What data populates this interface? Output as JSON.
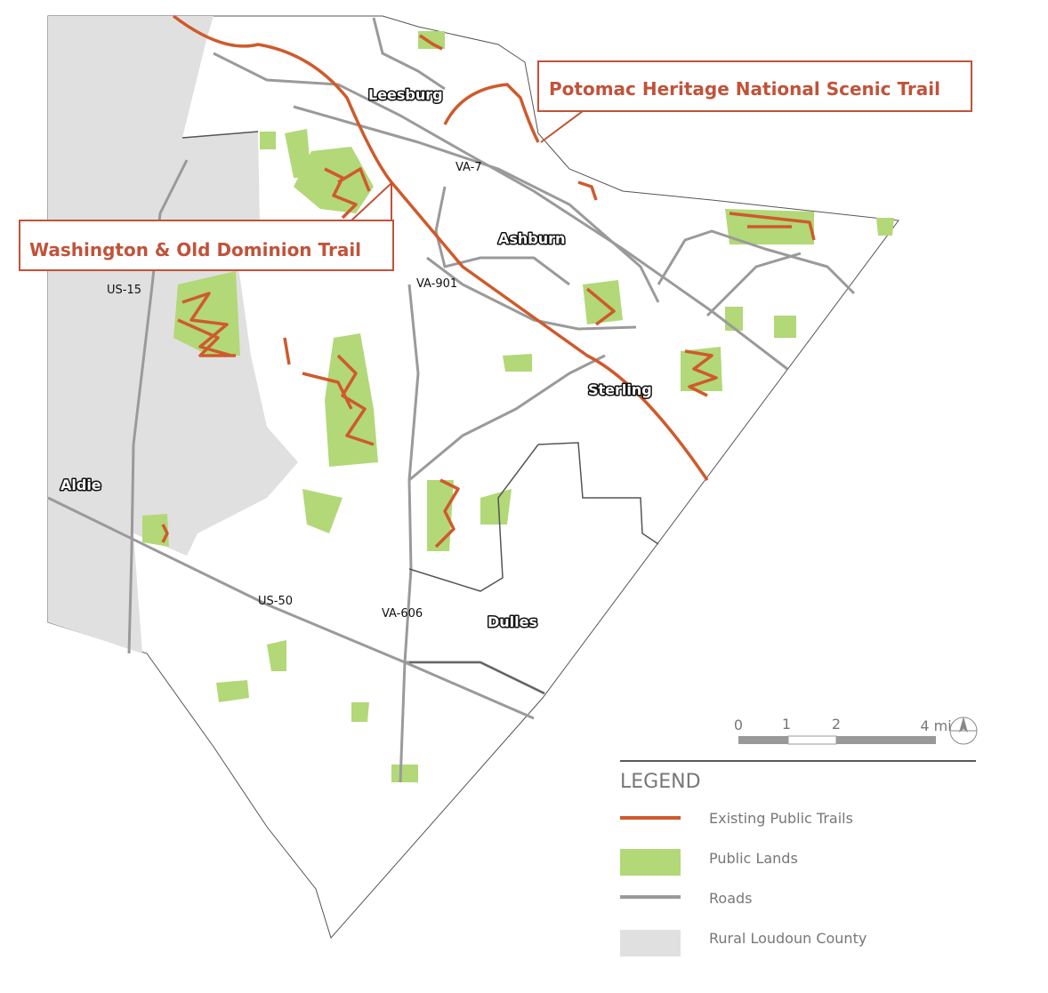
{
  "callouts": [
    "Potomac Heritage National Scenic Trail",
    "Washington & Old Dominion Trail"
  ],
  "places": [
    "Leesburg",
    "Ashburn",
    "Sterling",
    "Aldie",
    "Dulles"
  ],
  "roads": [
    "VA-7",
    "VA-901",
    "US-15",
    "US-50",
    "VA-606"
  ],
  "scale": [
    "0",
    "1",
    "2",
    "4 mi"
  ],
  "legend": {
    "title": "LEGEND",
    "items": [
      "Existing Public Trails",
      "Public Lands",
      "Roads",
      "Rural Loudoun County"
    ]
  }
}
